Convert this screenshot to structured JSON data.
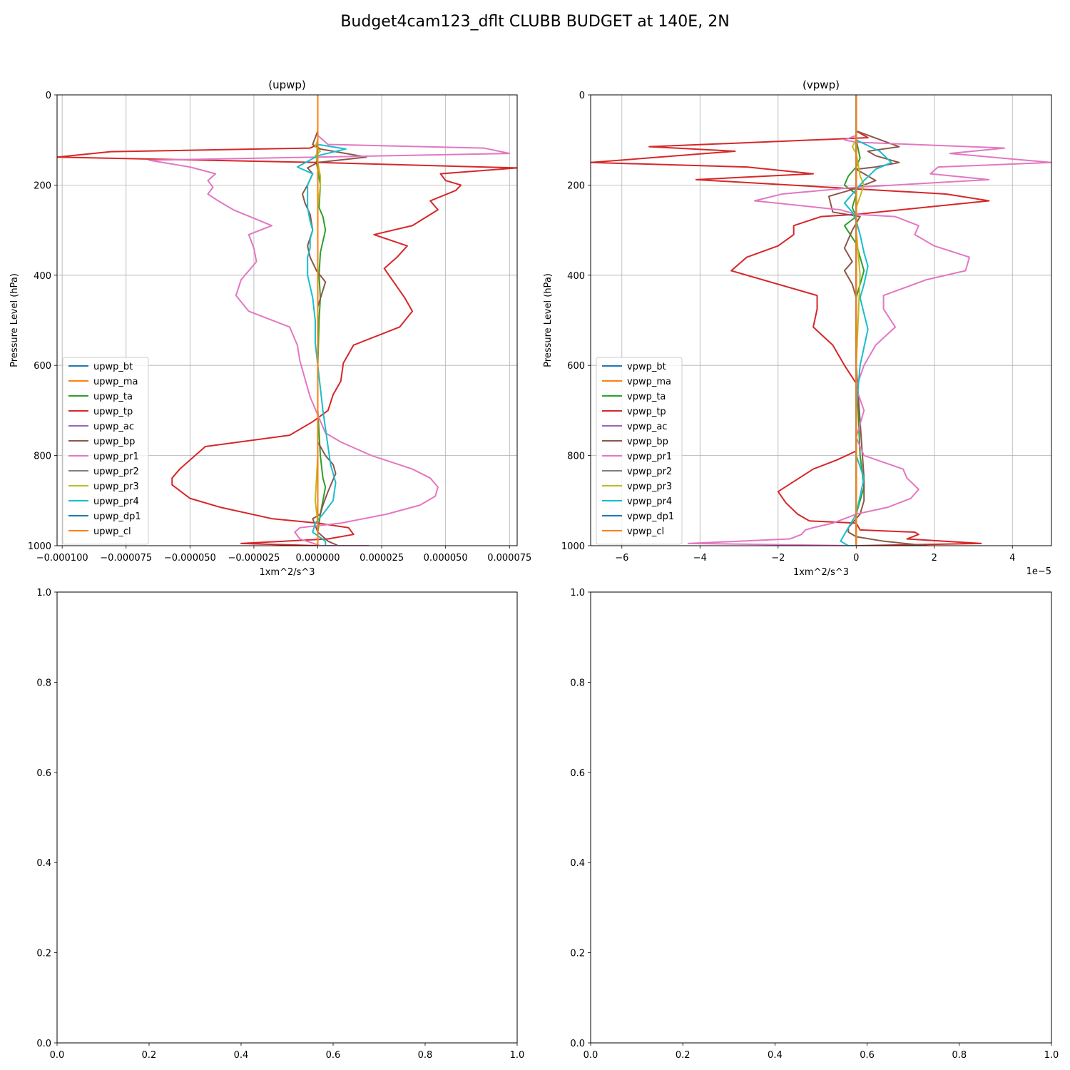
{
  "figure_title": "Budget4cam123_dflt CLUBB BUDGET at 140E, 2N",
  "chart_data": [
    {
      "type": "line",
      "title": "(upwp)",
      "xlabel": "1xm^2/s^3",
      "ylabel": "Pressure Level (hPa)",
      "xlim": [
        -0.000102,
        7.8e-05
      ],
      "ylim": [
        1000,
        0
      ],
      "yticks": [
        0,
        200,
        400,
        600,
        800,
        1000
      ],
      "ytick_labels": [
        "0",
        "200",
        "400",
        "600",
        "800",
        "1000"
      ],
      "xticks": [
        -0.0001,
        -7.5e-05,
        -5e-05,
        -2.5e-05,
        0,
        2.5e-05,
        5e-05,
        7.5e-05
      ],
      "xtick_labels": [
        "−0.000100",
        "−0.000075",
        "−0.000050",
        "−0.000025",
        "0.000000",
        "0.000025",
        "0.000050",
        "0.000075"
      ],
      "offset_text": "",
      "grid": true,
      "legend_position": "lower-left",
      "series": [
        {
          "name": "upwp_bt",
          "color": "#1f77b4",
          "x": [
            0.0,
            0.0,
            0.0
          ],
          "y": [
            0,
            500,
            1000
          ]
        },
        {
          "name": "upwp_ma",
          "color": "#ff7f0e",
          "x": [
            0.0,
            0.0,
            0.0
          ],
          "y": [
            0,
            500,
            1000
          ]
        },
        {
          "name": "upwp_ta",
          "color": "#2ca02c",
          "x": [
            0.0,
            0.0,
            -5e-07,
            1e-06,
            5e-07,
            2e-06,
            3e-06,
            1e-06,
            5e-07,
            1e-06,
            5e-07,
            0.0,
            0.0,
            1e-06,
            2e-06,
            3e-06,
            2e-06,
            1e-06,
            0.0,
            0.0
          ],
          "y": [
            0,
            100,
            150,
            200,
            250,
            270,
            300,
            350,
            400,
            450,
            500,
            600,
            700,
            800,
            850,
            870,
            900,
            930,
            970,
            1000
          ]
        },
        {
          "name": "upwp_tp",
          "color": "#d62728",
          "x": [
            0.0,
            0.0,
            -3e-06,
            -8.1e-05,
            -0.000102,
            0.0,
            7.8e-05,
            4.8e-05,
            5e-05,
            5.6e-05,
            5.4e-05,
            4.4e-05,
            4.7e-05,
            3.7e-05,
            2.2e-05,
            3.5e-05,
            3.1e-05,
            2.6e-05,
            3.4e-05,
            3.7e-05,
            3.2e-05,
            1.4e-05,
            1e-05,
            9e-06,
            6e-06,
            4e-06,
            -2e-06,
            -1.1e-05,
            -4.4e-05,
            -5.4e-05,
            -5.7e-05,
            -5.7e-05,
            -5e-05,
            -3.8e-05,
            -1.8e-05,
            0.0,
            1.2e-05,
            1.4e-05,
            4e-06,
            -3e-05,
            0.0
          ],
          "y": [
            0,
            110,
            118,
            126,
            138,
            150,
            162,
            175,
            190,
            200,
            212,
            235,
            255,
            290,
            310,
            335,
            360,
            385,
            450,
            480,
            515,
            555,
            595,
            635,
            665,
            700,
            725,
            755,
            780,
            830,
            850,
            865,
            895,
            915,
            940,
            950,
            960,
            975,
            985,
            995,
            1000
          ]
        },
        {
          "name": "upwp_ac",
          "color": "#9467bd",
          "x": [
            0.0,
            0.0,
            0.0
          ],
          "y": [
            0,
            500,
            1000
          ]
        },
        {
          "name": "upwp_bp",
          "color": "#8c564b",
          "x": [
            0.0,
            0.0,
            -2e-06,
            1e-06,
            1.9e-05,
            0.0,
            -4e-06,
            -2e-06,
            -4e-06,
            -6e-06,
            -5e-06,
            -3e-06,
            -2e-06,
            -4e-06,
            -3e-06,
            -5e-07,
            3e-06,
            0.0,
            0.0,
            0.0,
            0.0,
            3e-06,
            6e-06,
            7e-06,
            4e-06,
            2e-06,
            1e-06,
            -2e-06,
            -1e-06,
            0.0,
            4e-06,
            8e-06
          ],
          "y": [
            0,
            80,
            110,
            120,
            138,
            150,
            162,
            175,
            200,
            220,
            240,
            265,
            300,
            335,
            360,
            390,
            415,
            470,
            600,
            700,
            770,
            800,
            820,
            840,
            880,
            910,
            930,
            940,
            955,
            970,
            990,
            1000
          ]
        },
        {
          "name": "upwp_pr1",
          "color": "#e377c2",
          "x": [
            0.0,
            0.0,
            4e-06,
            6.5e-05,
            7.5e-05,
            0.0,
            -6.6e-05,
            -5e-05,
            -4e-05,
            -4.3e-05,
            -4.1e-05,
            -4.3e-05,
            -3.9e-05,
            -3.3e-05,
            -1.8e-05,
            -2.7e-05,
            -2.5e-05,
            -2.4e-05,
            -3e-05,
            -3.2e-05,
            -2.7e-05,
            -1.1e-05,
            -8e-06,
            -7e-06,
            -5e-06,
            -3e-06,
            0.0,
            3e-06,
            9e-06,
            2.1e-05,
            3.7e-05,
            4.4e-05,
            4.7e-05,
            4.6e-05,
            4e-05,
            2.7e-05,
            9e-06,
            -7e-06,
            -9e-06,
            -7e-06,
            1e-06,
            2e-05
          ],
          "y": [
            0,
            90,
            110,
            118,
            130,
            138,
            145,
            160,
            175,
            190,
            205,
            220,
            235,
            255,
            290,
            310,
            340,
            370,
            410,
            445,
            480,
            515,
            555,
            590,
            630,
            670,
            710,
            750,
            770,
            800,
            830,
            850,
            870,
            890,
            910,
            930,
            950,
            960,
            970,
            985,
            1000,
            1000
          ]
        },
        {
          "name": "upwp_pr2",
          "color": "#7f7f7f",
          "x": [
            0.0,
            0.0,
            0.0
          ],
          "y": [
            0,
            500,
            1000
          ]
        },
        {
          "name": "upwp_pr3",
          "color": "#bcbd22",
          "x": [
            0.0,
            0.0,
            -1e-06,
            1e-06,
            -1e-06,
            0.0,
            1e-06,
            1e-06,
            0.0,
            0.0,
            0.0,
            0.0,
            0.0,
            -1e-06,
            0.0,
            0.0
          ],
          "y": [
            0,
            100,
            115,
            125,
            135,
            150,
            180,
            200,
            250,
            300,
            400,
            600,
            800,
            900,
            950,
            1000
          ]
        },
        {
          "name": "upwp_pr4",
          "color": "#17becf",
          "x": [
            0.0,
            0.0,
            1.1e-05,
            0.0,
            -8e-06,
            -2e-06,
            -4e-06,
            -4e-06,
            -4e-06,
            -3e-06,
            -2e-06,
            -3e-06,
            -3e-06,
            -4e-06,
            -4e-06,
            -2e-06,
            -1e-06,
            -1e-06,
            0.0,
            2e-06,
            4e-06,
            5e-06,
            7e-06,
            6e-06,
            2e-06,
            -1e-06,
            -2e-06,
            3e-06,
            3e-06
          ],
          "y": [
            0,
            110,
            120,
            135,
            160,
            175,
            200,
            220,
            250,
            280,
            300,
            320,
            340,
            360,
            400,
            450,
            500,
            550,
            600,
            700,
            780,
            820,
            860,
            900,
            930,
            950,
            970,
            990,
            1000
          ]
        },
        {
          "name": "upwp_dp1",
          "color": "#1f77b4",
          "x": [
            0.0,
            0.0,
            0.0
          ],
          "y": [
            0,
            500,
            1000
          ]
        },
        {
          "name": "upwp_cl",
          "color": "#ff7f0e",
          "x": [
            0.0,
            0.0,
            0.0
          ],
          "y": [
            0,
            500,
            1000
          ]
        }
      ]
    },
    {
      "type": "line",
      "title": "(vpwp)",
      "xlabel": "1xm^2/s^3",
      "ylabel": "Pressure Level (hPa)",
      "xlim": [
        -6.8,
        5.0
      ],
      "ylim": [
        1000,
        0
      ],
      "yticks": [
        0,
        200,
        400,
        600,
        800,
        1000
      ],
      "ytick_labels": [
        "0",
        "200",
        "400",
        "600",
        "800",
        "1000"
      ],
      "xticks": [
        -6,
        -4,
        -2,
        0,
        2,
        4
      ],
      "xtick_labels": [
        "−6",
        "−4",
        "−2",
        "0",
        "2",
        "4"
      ],
      "offset_text": "1e−5",
      "grid": true,
      "legend_position": "lower-left",
      "series": [
        {
          "name": "vpwp_bt",
          "color": "#1f77b4",
          "x": [
            0.0,
            0.0,
            0.0
          ],
          "y": [
            0,
            500,
            1000
          ]
        },
        {
          "name": "vpwp_ma",
          "color": "#ff7f0e",
          "x": [
            0.0,
            0.0,
            0.0
          ],
          "y": [
            0,
            500,
            1000
          ]
        },
        {
          "name": "vpwp_ta",
          "color": "#2ca02c",
          "x": [
            0.0,
            0.0,
            0.1,
            0.0,
            -0.2,
            -0.3,
            0.0,
            -0.1,
            0.0,
            -0.3,
            0.0,
            0.2,
            0.0,
            0.0,
            0.1,
            0.2,
            0.0,
            0.0
          ],
          "y": [
            0,
            100,
            140,
            160,
            180,
            200,
            220,
            250,
            270,
            290,
            330,
            390,
            450,
            600,
            800,
            870,
            930,
            1000
          ]
        },
        {
          "name": "vpwp_tp",
          "color": "#d62728",
          "x": [
            0.0,
            0.0,
            0.3,
            -5.3,
            -3.1,
            -6.8,
            -2.8,
            -1.1,
            -4.1,
            2.3,
            3.4,
            0.0,
            -0.9,
            -1.6,
            -1.6,
            -2.0,
            -2.8,
            -3.2,
            -1.0,
            -1.0,
            -1.1,
            -0.6,
            -0.3,
            0.0,
            0.0,
            0.0,
            -0.5,
            -1.1,
            -2.0,
            -1.8,
            -1.5,
            -1.2,
            0.0,
            0.1,
            1.5,
            1.6,
            1.3,
            3.2,
            0.0
          ],
          "y": [
            0,
            80,
            95,
            115,
            125,
            150,
            160,
            175,
            188,
            220,
            235,
            265,
            270,
            290,
            310,
            335,
            360,
            390,
            445,
            475,
            515,
            555,
            600,
            640,
            700,
            790,
            810,
            830,
            880,
            905,
            930,
            945,
            950,
            965,
            970,
            975,
            985,
            995,
            1000
          ]
        },
        {
          "name": "vpwp_ac",
          "color": "#9467bd",
          "x": [
            0.0,
            0.0,
            0.0
          ],
          "y": [
            0,
            500,
            1000
          ]
        },
        {
          "name": "vpwp_bp",
          "color": "#8c564b",
          "x": [
            0.0,
            0.0,
            1.1,
            0.3,
            0.5,
            1.1,
            0.5,
            0.0,
            0.5,
            -0.1,
            -0.7,
            -0.6,
            0.1,
            -0.1,
            -0.3,
            -0.1,
            -0.3,
            -0.1,
            0.0,
            0.0,
            0.2,
            0.2,
            0.1,
            -0.1,
            -0.2,
            -0.2,
            0.0,
            0.7,
            1.8,
            0.0
          ],
          "y": [
            0,
            80,
            115,
            125,
            135,
            150,
            160,
            165,
            190,
            210,
            225,
            260,
            270,
            300,
            340,
            370,
            390,
            420,
            450,
            600,
            850,
            900,
            930,
            950,
            960,
            970,
            980,
            990,
            1000,
            1000
          ]
        },
        {
          "name": "vpwp_pr1",
          "color": "#e377c2",
          "x": [
            0.0,
            0.0,
            -0.3,
            0.0,
            3.8,
            2.4,
            5.0,
            2.1,
            1.9,
            3.4,
            0.0,
            -1.9,
            -2.6,
            -0.4,
            0.0,
            1.0,
            1.6,
            1.5,
            2.0,
            2.9,
            2.8,
            1.8,
            0.7,
            0.7,
            1.0,
            0.5,
            0.2,
            0.0,
            0.2,
            0.0,
            0.2,
            1.2,
            1.3,
            1.6,
            1.4,
            0.8,
            0.0,
            -0.6,
            -1.1,
            -1.3,
            -1.4,
            -1.7,
            -4.3,
            0.0
          ],
          "y": [
            0,
            90,
            100,
            105,
            118,
            130,
            150,
            160,
            175,
            188,
            205,
            220,
            235,
            255,
            265,
            270,
            290,
            310,
            335,
            360,
            390,
            410,
            445,
            475,
            515,
            555,
            600,
            650,
            700,
            760,
            800,
            830,
            850,
            875,
            895,
            915,
            930,
            950,
            960,
            965,
            975,
            985,
            995,
            1000
          ]
        },
        {
          "name": "vpwp_pr2",
          "color": "#7f7f7f",
          "x": [
            0.0,
            0.0,
            0.0
          ],
          "y": [
            0,
            500,
            1000
          ]
        },
        {
          "name": "vpwp_pr3",
          "color": "#bcbd22",
          "x": [
            0.0,
            0.0,
            -0.1,
            0.0,
            0.1,
            0.2,
            0.0,
            0.0,
            0.1,
            0.0,
            0.0,
            0.0
          ],
          "y": [
            0,
            100,
            115,
            130,
            180,
            200,
            250,
            300,
            400,
            600,
            800,
            1000
          ]
        },
        {
          "name": "vpwp_pr4",
          "color": "#17becf",
          "x": [
            0.0,
            0.0,
            0.6,
            0.9,
            0.5,
            0.2,
            0.0,
            -0.3,
            -0.1,
            0.0,
            0.1,
            0.2,
            0.3,
            0.2,
            0.1,
            0.3,
            0.1,
            0.0,
            0.0,
            0.2,
            0.0,
            -0.4,
            -0.2,
            0.0
          ],
          "y": [
            0,
            100,
            125,
            150,
            165,
            190,
            210,
            240,
            260,
            280,
            310,
            350,
            380,
            420,
            450,
            520,
            600,
            700,
            800,
            850,
            930,
            990,
            1000,
            1000
          ]
        },
        {
          "name": "vpwp_dp1",
          "color": "#1f77b4",
          "x": [
            0.0,
            0.0,
            0.0
          ],
          "y": [
            0,
            500,
            1000
          ]
        },
        {
          "name": "vpwp_cl",
          "color": "#ff7f0e",
          "x": [
            0.0,
            0.0,
            0.0
          ],
          "y": [
            0,
            500,
            1000
          ]
        }
      ]
    },
    {
      "type": "line",
      "title": "",
      "xlabel": "",
      "ylabel": "",
      "xlim": [
        0,
        1
      ],
      "ylim": [
        0,
        1
      ],
      "xticks": [
        0,
        0.2,
        0.4,
        0.6,
        0.8,
        1.0
      ],
      "xtick_labels": [
        "0.0",
        "0.2",
        "0.4",
        "0.6",
        "0.8",
        "1.0"
      ],
      "yticks": [
        0,
        0.2,
        0.4,
        0.6,
        0.8,
        1.0
      ],
      "ytick_labels": [
        "0.0",
        "0.2",
        "0.4",
        "0.6",
        "0.8",
        "1.0"
      ],
      "offset_text": "",
      "grid": false,
      "series": []
    },
    {
      "type": "line",
      "title": "",
      "xlabel": "",
      "ylabel": "",
      "xlim": [
        0,
        1
      ],
      "ylim": [
        0,
        1
      ],
      "xticks": [
        0,
        0.2,
        0.4,
        0.6,
        0.8,
        1.0
      ],
      "xtick_labels": [
        "0.0",
        "0.2",
        "0.4",
        "0.6",
        "0.8",
        "1.0"
      ],
      "yticks": [
        0,
        0.2,
        0.4,
        0.6,
        0.8,
        1.0
      ],
      "ytick_labels": [
        "0.0",
        "0.2",
        "0.4",
        "0.6",
        "0.8",
        "1.0"
      ],
      "offset_text": "",
      "grid": false,
      "series": []
    }
  ]
}
